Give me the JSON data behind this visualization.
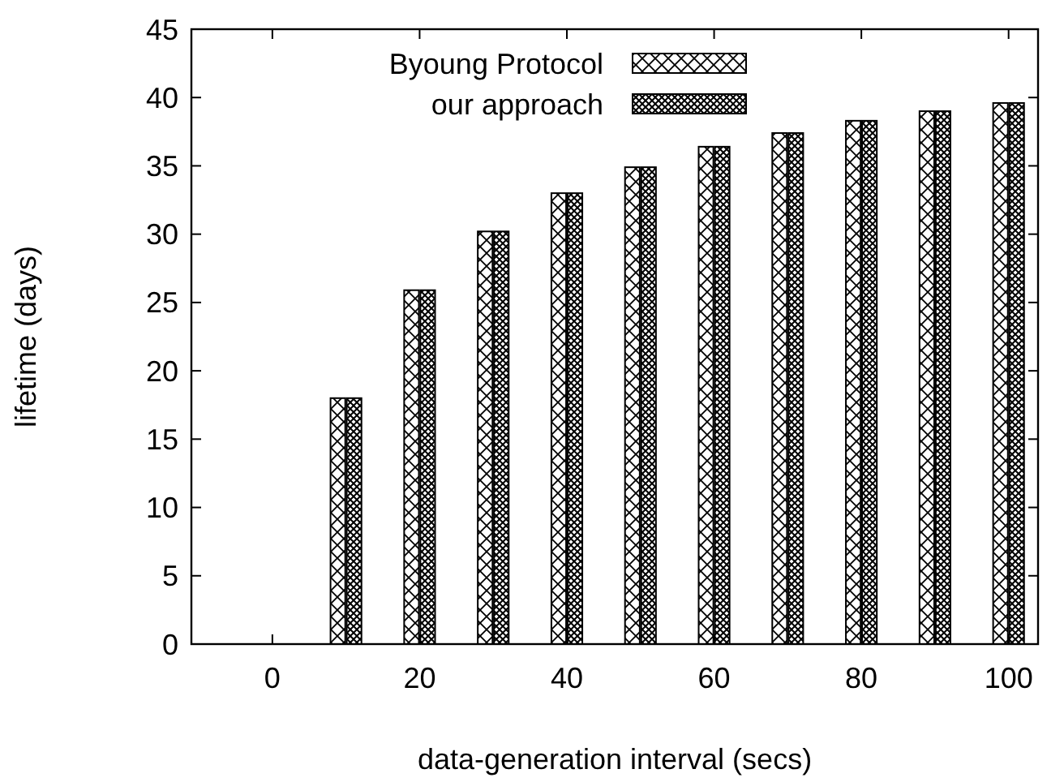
{
  "chart_data": {
    "type": "bar",
    "xlabel": "data-generation interval (secs)",
    "ylabel": "lifetime (days)",
    "x": [
      10,
      20,
      30,
      40,
      50,
      60,
      70,
      80,
      90,
      100
    ],
    "series": [
      {
        "name": "Byoung Protocol",
        "color": "#000000",
        "values": [
          18.0,
          25.9,
          30.2,
          33.0,
          34.9,
          36.4,
          37.4,
          38.3,
          39.0,
          39.6
        ]
      },
      {
        "name": "our approach",
        "color": "#000000",
        "values": [
          18.0,
          25.9,
          30.2,
          33.0,
          34.9,
          36.4,
          37.4,
          38.3,
          39.0,
          39.6
        ]
      }
    ],
    "xlim": [
      -11,
      104
    ],
    "xticks": [
      0,
      20,
      40,
      60,
      80,
      100
    ],
    "ylim": [
      0,
      45
    ],
    "yticks": [
      0,
      5,
      10,
      15,
      20,
      25,
      30,
      35,
      40,
      45
    ],
    "grid": false,
    "legend": "top left"
  }
}
